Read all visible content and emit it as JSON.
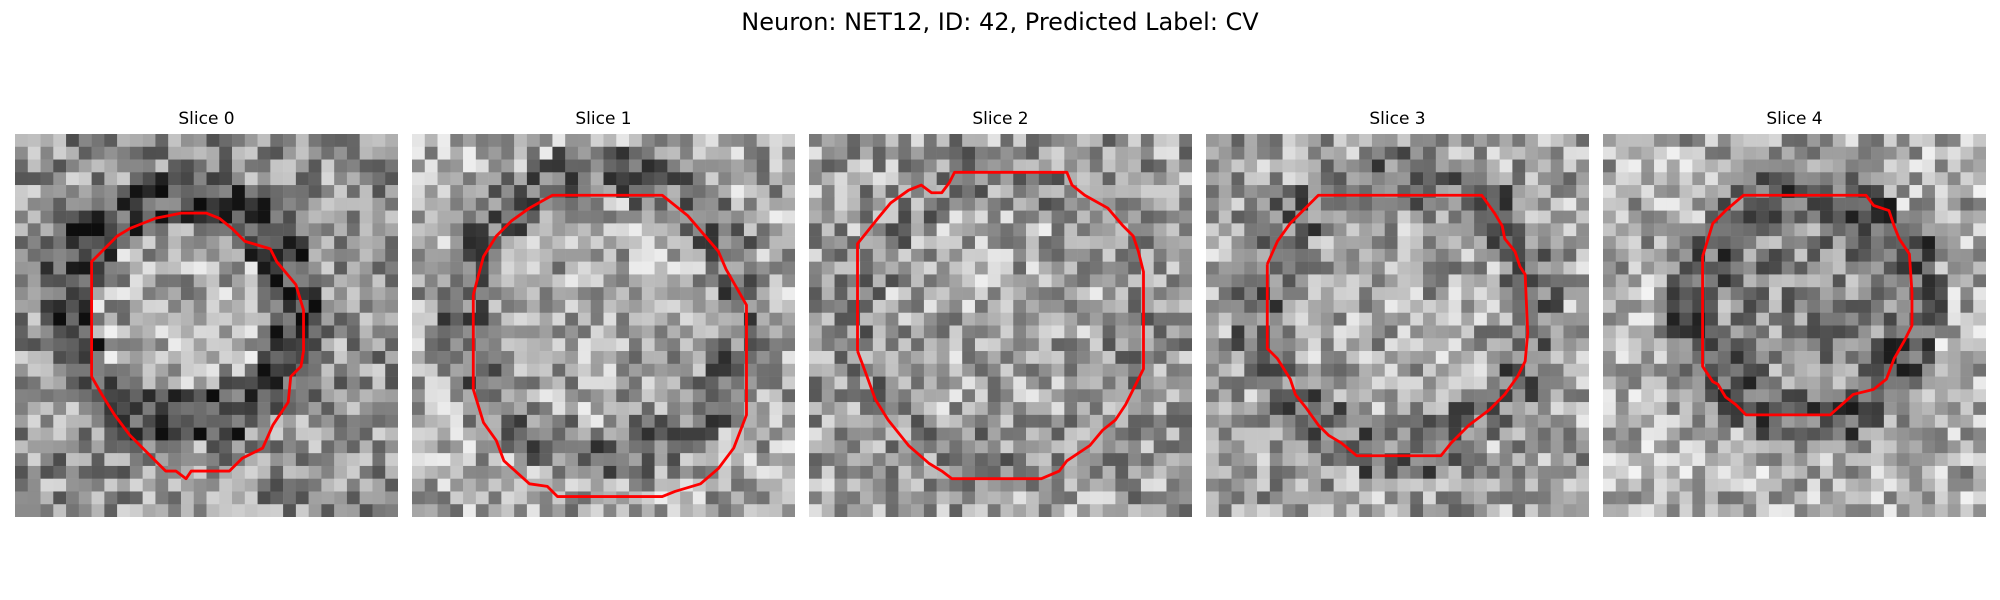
{
  "figure": {
    "title": "Neuron: NET12, ID: 42, Predicted Label: CV"
  },
  "contour_color": "#ff0000",
  "slices": [
    {
      "title": "Slice 0"
    },
    {
      "title": "Slice 1"
    },
    {
      "title": "Slice 2"
    },
    {
      "title": "Slice 3"
    },
    {
      "title": "Slice 4"
    }
  ]
}
